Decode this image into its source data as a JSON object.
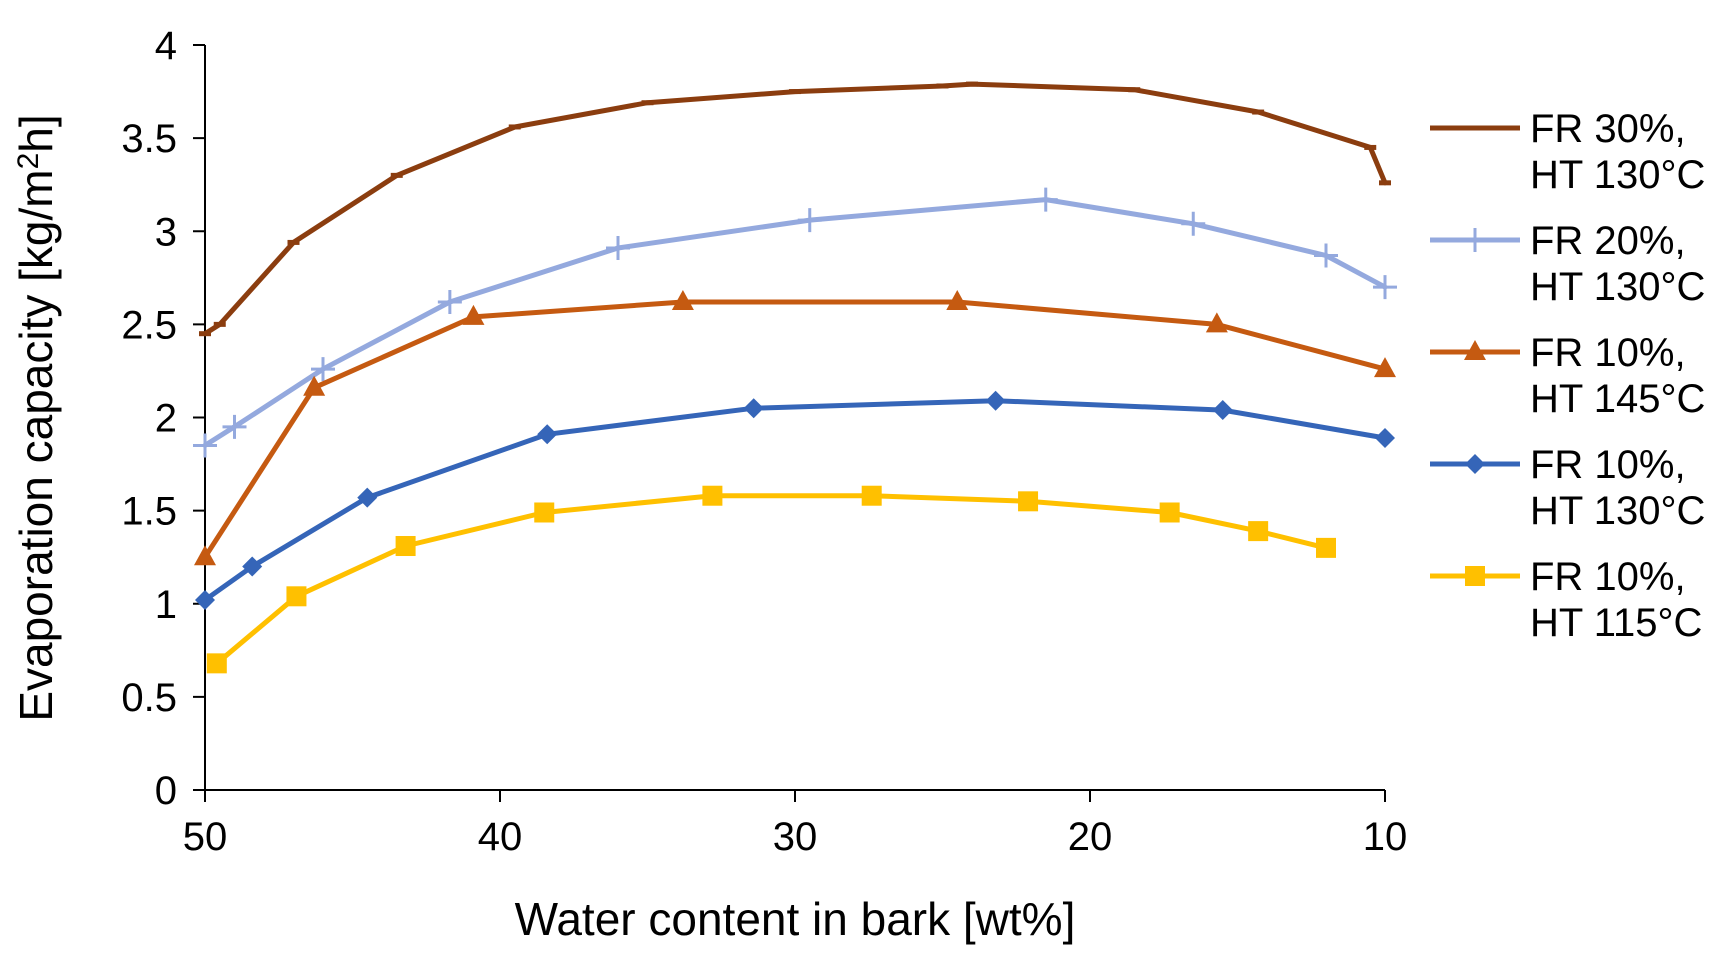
{
  "chart_data": {
    "type": "line",
    "title": "",
    "xlabel": "Water content in bark [wt%]",
    "ylabel": {
      "prefix": "Evaporation capacity [kg/m",
      "superscript": "2",
      "suffix": "h]"
    },
    "xlim": [
      50,
      10
    ],
    "ylim": [
      0,
      4
    ],
    "x_ticks": [
      "50",
      "40",
      "30",
      "20",
      "10"
    ],
    "x_tick_values": [
      50,
      40,
      30,
      20,
      10
    ],
    "y_ticks": [
      "0",
      "0.5",
      "1",
      "1.5",
      "2",
      "2.5",
      "3",
      "3.5",
      "4"
    ],
    "y_tick_values": [
      0,
      0.5,
      1,
      1.5,
      2,
      2.5,
      3,
      3.5,
      4
    ],
    "grid": false,
    "legend_position": "right",
    "series": [
      {
        "name": "FR 30%, HT 130°C",
        "legend_lines": [
          "FR 30%,",
          "HT 130°C"
        ],
        "color": "#8b3d0f",
        "marker": "dash",
        "x": [
          50,
          49.5,
          47,
          43.5,
          39.5,
          35,
          30,
          25,
          24,
          18.5,
          14.3,
          10.5,
          10
        ],
        "y": [
          2.45,
          2.5,
          2.94,
          3.3,
          3.56,
          3.69,
          3.75,
          3.78,
          3.79,
          3.76,
          3.64,
          3.45,
          3.26
        ]
      },
      {
        "name": "FR 20%, HT 130°C",
        "legend_lines": [
          "FR 20%,",
          "HT 130°C"
        ],
        "color": "#94a9de",
        "marker": "plus",
        "x": [
          50,
          49,
          46,
          41.7,
          36,
          29.5,
          21.5,
          16.5,
          12,
          10
        ],
        "y": [
          1.85,
          1.95,
          2.26,
          2.62,
          2.91,
          3.06,
          3.17,
          3.04,
          2.87,
          2.7
        ]
      },
      {
        "name": "FR 10%, HT 145°C",
        "legend_lines": [
          "FR 10%,",
          "HT 145°C"
        ],
        "color": "#c55a11",
        "marker": "triangle",
        "x": [
          50,
          46.3,
          40.9,
          33.8,
          24.5,
          15.7,
          10
        ],
        "y": [
          1.25,
          2.16,
          2.54,
          2.62,
          2.62,
          2.5,
          2.26
        ]
      },
      {
        "name": "FR 10%, HT 130°C",
        "legend_lines": [
          "FR 10%,",
          "HT 130°C"
        ],
        "color": "#3565b8",
        "marker": "diamond",
        "x": [
          50,
          48.4,
          44.5,
          38.4,
          31.4,
          23.2,
          15.5,
          10
        ],
        "y": [
          1.02,
          1.2,
          1.57,
          1.91,
          2.05,
          2.09,
          2.04,
          1.89
        ]
      },
      {
        "name": "FR 10%, HT 115°C",
        "legend_lines": [
          "FR 10%,",
          "HT 115°C"
        ],
        "color": "#ffc000",
        "marker": "square",
        "x": [
          49.6,
          46.9,
          43.2,
          38.5,
          32.8,
          27.4,
          22.1,
          17.3,
          14.3,
          12
        ],
        "y": [
          0.68,
          1.04,
          1.31,
          1.49,
          1.58,
          1.58,
          1.55,
          1.49,
          1.39,
          1.3
        ]
      }
    ]
  }
}
